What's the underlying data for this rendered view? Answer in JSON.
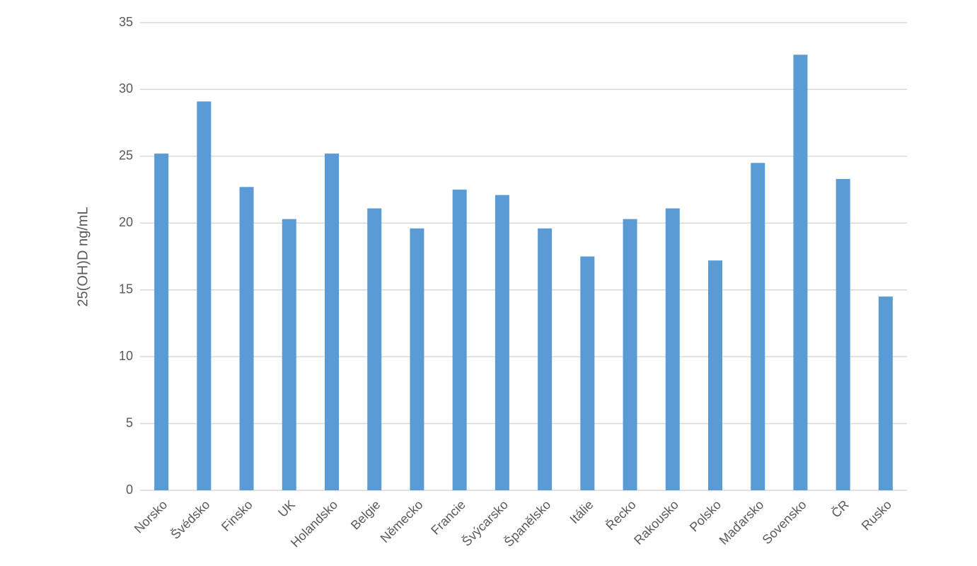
{
  "chart_data": {
    "type": "bar",
    "y_label": "25(OH)D ng/mL",
    "categories": [
      "Norsko",
      "Švédsko",
      "Finsko",
      "UK",
      "Holandsko",
      "Belgie",
      "Německo",
      "Francie",
      "Švýcarsko",
      "Španělsko",
      "Itálie",
      "Řecko",
      "Rakousko",
      "Polsko",
      "Maďarsko",
      "Sovensko",
      "ČR",
      "Rusko"
    ],
    "values": [
      25.2,
      29.1,
      22.7,
      20.3,
      25.2,
      21.1,
      19.6,
      22.5,
      22.1,
      19.6,
      17.5,
      20.3,
      21.1,
      17.2,
      24.5,
      32.6,
      23.3,
      14.5
    ],
    "color": "#5b9bd5",
    "ylim": [
      0,
      35
    ],
    "yticks": [
      0,
      5,
      10,
      15,
      20,
      25,
      30,
      35
    ],
    "grid": true
  }
}
